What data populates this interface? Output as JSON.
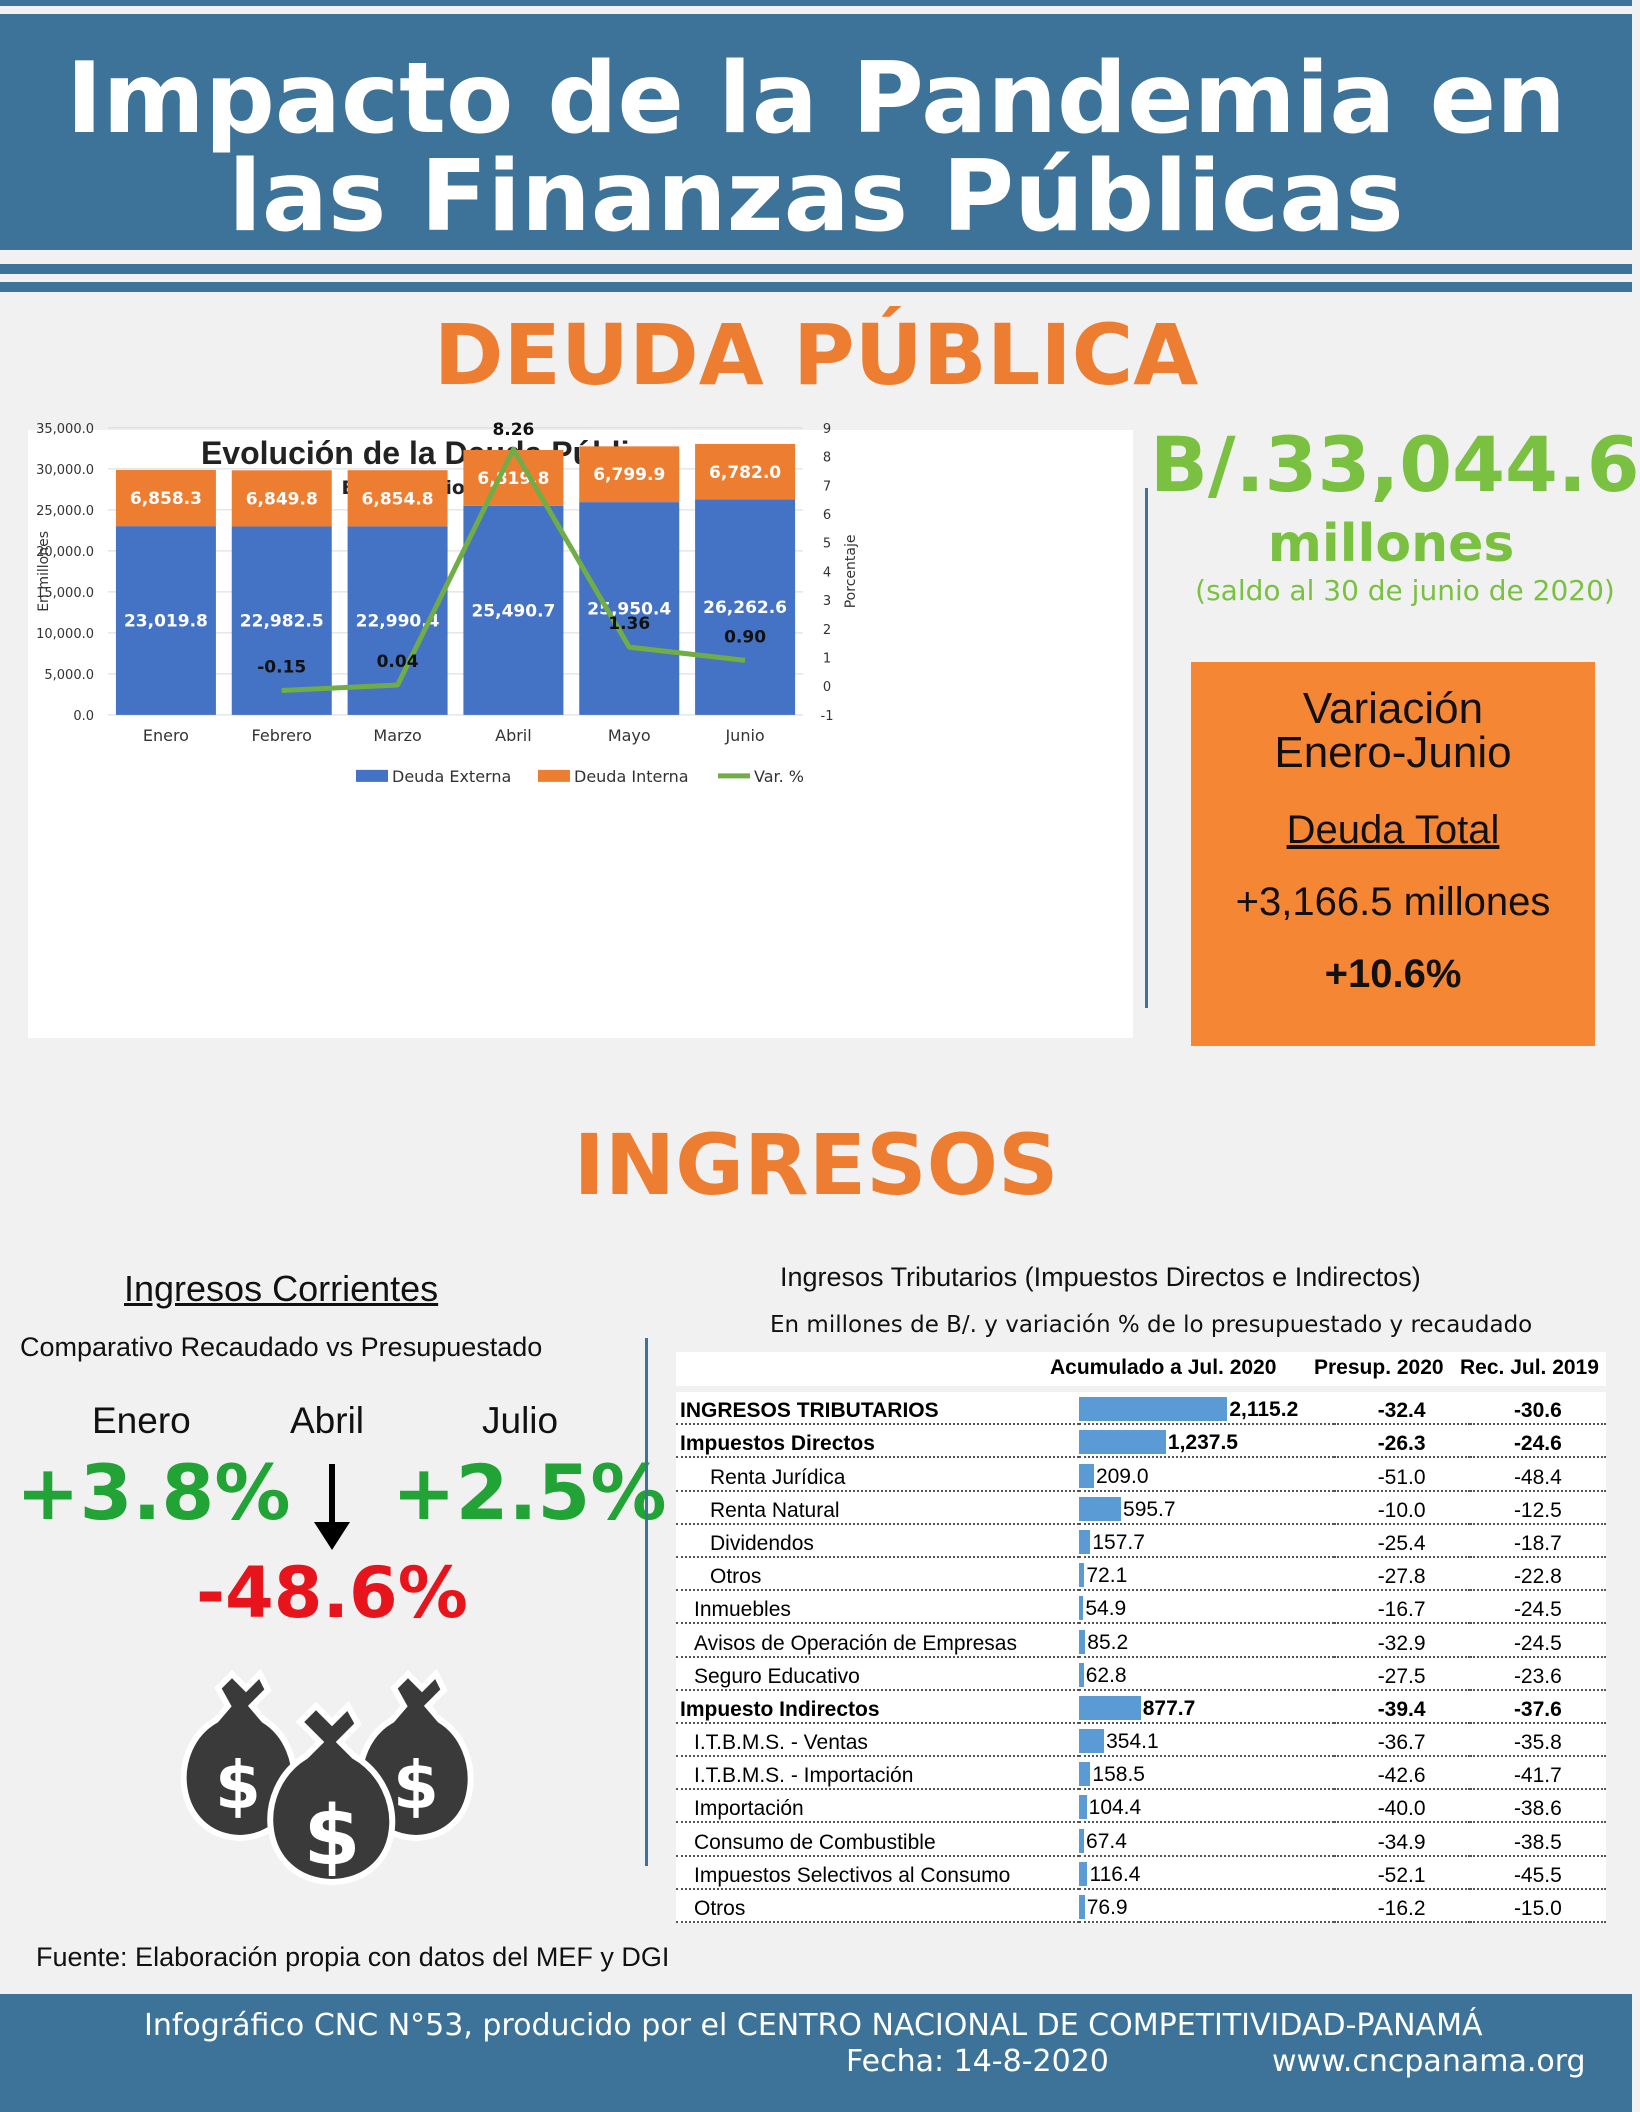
{
  "header": {
    "title_line1": "Impacto de la Pandemia en",
    "title_line2": "las Finanzas Públicas"
  },
  "deuda": {
    "section_title": "DEUDA PÚBLICA",
    "total_value": "B/.33,044.6",
    "total_unit": "millones",
    "total_note": "(saldo al 30 de junio de 2020)",
    "box": {
      "line1": "Variación",
      "line2": "Enero-Junio",
      "heading": "Deuda Total",
      "change_amount": "+3,166.5 millones",
      "change_pct": "+10.6%"
    },
    "colors": {
      "externa": "#4472c4",
      "interna": "#ed7d31",
      "var": "#70ad47"
    }
  },
  "chart_data": {
    "type": "bar",
    "title": "Evolución de la Deuda Pública",
    "subtitle": "Enero-Junio 2020",
    "ylabel": "En millones",
    "y2label": "Porcentaje",
    "categories": [
      "Enero",
      "Febrero",
      "Marzo",
      "Abril",
      "Mayo",
      "Junio"
    ],
    "series": [
      {
        "name": "Deuda Externa",
        "kind": "stacked-bar",
        "values": [
          23019.8,
          22982.5,
          22990.4,
          25490.7,
          25950.4,
          26262.6
        ],
        "labels": [
          "23,019.8",
          "22,982.5",
          "22,990.4",
          "25,490.7",
          "25,950.4",
          "26,262.6"
        ]
      },
      {
        "name": "Deuda Interna",
        "kind": "stacked-bar",
        "values": [
          6858.3,
          6849.8,
          6854.8,
          6819.8,
          6799.9,
          6782.0
        ],
        "labels": [
          "6,858.3",
          "6,849.8",
          "6,854.8",
          "6,819.8",
          "6,799.9",
          "6,782.0"
        ]
      },
      {
        "name": "Var. %",
        "kind": "line",
        "axis": "right",
        "values": [
          null,
          -0.15,
          0.04,
          8.26,
          1.36,
          0.9
        ],
        "labels": [
          "",
          "-0.15",
          "0.04",
          "8.26",
          "1.36",
          "0.90"
        ]
      }
    ],
    "ylim": [
      0,
      35000
    ],
    "yticks": [
      "0.0",
      "5,000.0",
      "10,000.0",
      "15,000.0",
      "20,000.0",
      "25,000.0",
      "30,000.0",
      "35,000.0"
    ],
    "y2lim": [
      -1,
      9
    ],
    "y2ticks": [
      "-1",
      "0",
      "1",
      "2",
      "3",
      "4",
      "5",
      "6",
      "7",
      "8",
      "9"
    ],
    "grid": true,
    "legend": "bottom"
  },
  "ingresos": {
    "section_title": "INGRESOS",
    "corrientes": {
      "title": "Ingresos Corrientes",
      "subtitle": "Comparativo Recaudado vs Presupuestado",
      "months": [
        {
          "label": "Enero",
          "value": "+3.8%"
        },
        {
          "label": "Abril",
          "value": "-48.6%"
        },
        {
          "label": "Julio",
          "value": "+2.5%"
        }
      ],
      "colors": {
        "positive": "#21a336",
        "negative": "#e8141c"
      }
    },
    "tributarios": {
      "title": "Ingresos Tributarios (Impuestos Directos e Indirectos)",
      "subtitle": "En millones de B/. y variación % de lo presupuestado y recaudado",
      "columns": [
        "Acumulado a Jul. 2020",
        "Presup. 2020",
        "Rec. Jul. 2019"
      ],
      "max_value": 2115.2,
      "rows": [
        {
          "label": "INGRESOS TRIBUTARIOS",
          "level": 0,
          "bold": true,
          "value": 2115.2,
          "value_text": "2,115.2",
          "presup": "-32.4",
          "rec": "-30.6"
        },
        {
          "label": "Impuestos Directos",
          "level": 0,
          "bold": true,
          "value": 1237.5,
          "value_text": "1,237.5",
          "presup": "-26.3",
          "rec": "-24.6"
        },
        {
          "label": "Renta Jurídica",
          "level": 1,
          "bold": false,
          "value": 209.0,
          "value_text": "209.0",
          "presup": "-51.0",
          "rec": "-48.4"
        },
        {
          "label": "Renta Natural",
          "level": 1,
          "bold": false,
          "value": 595.7,
          "value_text": "595.7",
          "presup": "-10.0",
          "rec": "-12.5"
        },
        {
          "label": "Dividendos",
          "level": 1,
          "bold": false,
          "value": 157.7,
          "value_text": "157.7",
          "presup": "-25.4",
          "rec": "-18.7"
        },
        {
          "label": "Otros",
          "level": 1,
          "bold": false,
          "value": 72.1,
          "value_text": "72.1",
          "presup": "-27.8",
          "rec": "-22.8"
        },
        {
          "label": "Inmuebles",
          "level": 2,
          "bold": false,
          "value": 54.9,
          "value_text": "54.9",
          "presup": "-16.7",
          "rec": "-24.5"
        },
        {
          "label": "Avisos de Operación de Empresas",
          "level": 2,
          "bold": false,
          "value": 85.2,
          "value_text": "85.2",
          "presup": "-32.9",
          "rec": "-24.5"
        },
        {
          "label": "Seguro Educativo",
          "level": 2,
          "bold": false,
          "value": 62.8,
          "value_text": "62.8",
          "presup": "-27.5",
          "rec": "-23.6"
        },
        {
          "label": "Impuesto Indirectos",
          "level": 0,
          "bold": true,
          "value": 877.7,
          "value_text": "877.7",
          "presup": "-39.4",
          "rec": "-37.6"
        },
        {
          "label": "I.T.B.M.S. - Ventas",
          "level": 2,
          "bold": false,
          "value": 354.1,
          "value_text": "354.1",
          "presup": "-36.7",
          "rec": "-35.8"
        },
        {
          "label": "I.T.B.M.S. - Importación",
          "level": 2,
          "bold": false,
          "value": 158.5,
          "value_text": "158.5",
          "presup": "-42.6",
          "rec": "-41.7"
        },
        {
          "label": "Importación",
          "level": 2,
          "bold": false,
          "value": 104.4,
          "value_text": "104.4",
          "presup": "-40.0",
          "rec": "-38.6"
        },
        {
          "label": "Consumo de Combustible",
          "level": 2,
          "bold": false,
          "value": 67.4,
          "value_text": "67.4",
          "presup": "-34.9",
          "rec": "-38.5"
        },
        {
          "label": "Impuestos Selectivos al Consumo",
          "level": 2,
          "bold": false,
          "value": 116.4,
          "value_text": "116.4",
          "presup": "-52.1",
          "rec": "-45.5"
        },
        {
          "label": "Otros",
          "level": 2,
          "bold": false,
          "value": 76.9,
          "value_text": "76.9",
          "presup": "-16.2",
          "rec": "-15.0"
        }
      ]
    },
    "icon": "money-bags-icon"
  },
  "source": "Fuente: Elaboración propia con datos del MEF y DGI",
  "footer": {
    "line1": "Infográfico CNC N°53, producido por el CENTRO NACIONAL DE COMPETITIVIDAD-PANAMÁ",
    "date": "Fecha: 14-8-2020",
    "website": "www.cncpanama.org"
  }
}
